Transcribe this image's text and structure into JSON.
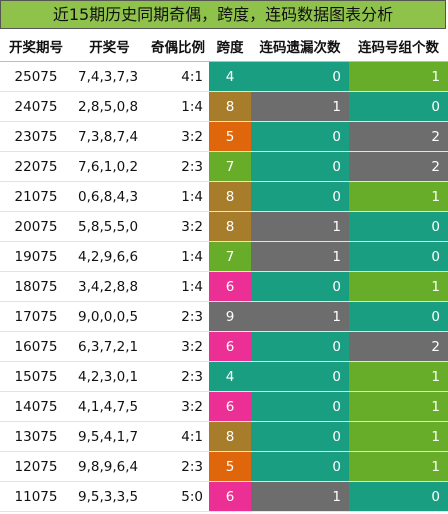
{
  "title": "近15期历史同期奇偶，跨度，连码数据图表分析",
  "columns": [
    "开奖期号",
    "开奖号",
    "奇偶比例",
    "跨度",
    "连码遗漏次数",
    "连码号组个数"
  ],
  "colors": {
    "title_bg": "#8fc24a",
    "teal": "#1a9e82",
    "gray": "#6d6d6d",
    "green": "#68ad2a",
    "brown": "#a77c2b",
    "orange": "#e0660b",
    "pink": "#ec2f94"
  },
  "rows": [
    {
      "issue": "25075",
      "nums": "7,4,3,7,3",
      "ratio": "4:1",
      "span": "4",
      "span_color": "teal",
      "miss": "0",
      "miss_color": "teal",
      "groups": "1",
      "groups_color": "green"
    },
    {
      "issue": "24075",
      "nums": "2,8,5,0,8",
      "ratio": "1:4",
      "span": "8",
      "span_color": "brown",
      "miss": "1",
      "miss_color": "gray",
      "groups": "0",
      "groups_color": "teal"
    },
    {
      "issue": "23075",
      "nums": "7,3,8,7,4",
      "ratio": "3:2",
      "span": "5",
      "span_color": "orange",
      "miss": "0",
      "miss_color": "teal",
      "groups": "2",
      "groups_color": "gray"
    },
    {
      "issue": "22075",
      "nums": "7,6,1,0,2",
      "ratio": "2:3",
      "span": "7",
      "span_color": "green",
      "miss": "0",
      "miss_color": "teal",
      "groups": "2",
      "groups_color": "gray"
    },
    {
      "issue": "21075",
      "nums": "0,6,8,4,3",
      "ratio": "1:4",
      "span": "8",
      "span_color": "brown",
      "miss": "0",
      "miss_color": "teal",
      "groups": "1",
      "groups_color": "green"
    },
    {
      "issue": "20075",
      "nums": "5,8,5,5,0",
      "ratio": "3:2",
      "span": "8",
      "span_color": "brown",
      "miss": "1",
      "miss_color": "gray",
      "groups": "0",
      "groups_color": "teal"
    },
    {
      "issue": "19075",
      "nums": "4,2,9,6,6",
      "ratio": "1:4",
      "span": "7",
      "span_color": "green",
      "miss": "1",
      "miss_color": "gray",
      "groups": "0",
      "groups_color": "teal"
    },
    {
      "issue": "18075",
      "nums": "3,4,2,8,8",
      "ratio": "1:4",
      "span": "6",
      "span_color": "pink",
      "miss": "0",
      "miss_color": "teal",
      "groups": "1",
      "groups_color": "green"
    },
    {
      "issue": "17075",
      "nums": "9,0,0,0,5",
      "ratio": "2:3",
      "span": "9",
      "span_color": "gray",
      "miss": "1",
      "miss_color": "gray",
      "groups": "0",
      "groups_color": "teal"
    },
    {
      "issue": "16075",
      "nums": "6,3,7,2,1",
      "ratio": "3:2",
      "span": "6",
      "span_color": "pink",
      "miss": "0",
      "miss_color": "teal",
      "groups": "2",
      "groups_color": "gray"
    },
    {
      "issue": "15075",
      "nums": "4,2,3,0,1",
      "ratio": "2:3",
      "span": "4",
      "span_color": "teal",
      "miss": "0",
      "miss_color": "teal",
      "groups": "1",
      "groups_color": "green"
    },
    {
      "issue": "14075",
      "nums": "4,1,4,7,5",
      "ratio": "3:2",
      "span": "6",
      "span_color": "pink",
      "miss": "0",
      "miss_color": "teal",
      "groups": "1",
      "groups_color": "green"
    },
    {
      "issue": "13075",
      "nums": "9,5,4,1,7",
      "ratio": "4:1",
      "span": "8",
      "span_color": "brown",
      "miss": "0",
      "miss_color": "teal",
      "groups": "1",
      "groups_color": "green"
    },
    {
      "issue": "12075",
      "nums": "9,8,9,6,4",
      "ratio": "2:3",
      "span": "5",
      "span_color": "orange",
      "miss": "0",
      "miss_color": "teal",
      "groups": "1",
      "groups_color": "green"
    },
    {
      "issue": "11075",
      "nums": "9,5,3,3,5",
      "ratio": "5:0",
      "span": "6",
      "span_color": "pink",
      "miss": "1",
      "miss_color": "gray",
      "groups": "0",
      "groups_color": "teal"
    }
  ]
}
